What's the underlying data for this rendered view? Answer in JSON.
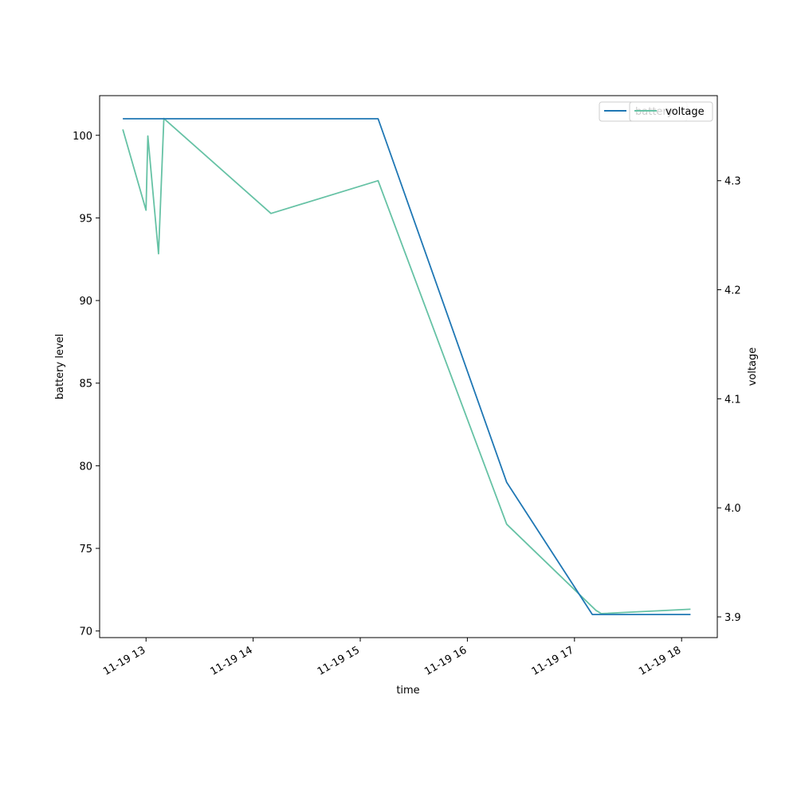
{
  "chart_data": {
    "type": "line",
    "xlabel": "time",
    "ylabel_left": "battery level",
    "ylabel_right": "voltage",
    "x_ticks": [
      "11-19 13",
      "11-19 14",
      "11-19 15",
      "11-19 16",
      "11-19 17",
      "11-19 18"
    ],
    "xlim": [
      "2023-11-19 12:34",
      "2023-11-19 18:20"
    ],
    "ylim_left": [
      69.6,
      102.4
    ],
    "ylim_right": [
      3.881,
      4.378
    ],
    "y_ticks_left": [
      70,
      75,
      80,
      85,
      90,
      95,
      100
    ],
    "y_ticks_right": [
      3.9,
      4.0,
      4.1,
      4.2,
      4.3
    ],
    "grid": false,
    "series": [
      {
        "name": "battery",
        "axis": "left",
        "color": "#1f77b4",
        "points": [
          {
            "x": "2023-11-19 12:47",
            "y": 101
          },
          {
            "x": "2023-11-19 15:10",
            "y": 101
          },
          {
            "x": "2023-11-19 16:22",
            "y": 79
          },
          {
            "x": "2023-11-19 17:10",
            "y": 71
          },
          {
            "x": "2023-11-19 18:05",
            "y": 71
          }
        ]
      },
      {
        "name": "voltage",
        "axis": "right",
        "color": "#66c2a5",
        "points": [
          {
            "x": "2023-11-19 12:47",
            "y": 4.347
          },
          {
            "x": "2023-11-19 13:00",
            "y": 4.273
          },
          {
            "x": "2023-11-19 13:01",
            "y": 4.341
          },
          {
            "x": "2023-11-19 13:07",
            "y": 4.233
          },
          {
            "x": "2023-11-19 13:10",
            "y": 4.357
          },
          {
            "x": "2023-11-19 14:10",
            "y": 4.27
          },
          {
            "x": "2023-11-19 15:10",
            "y": 4.3
          },
          {
            "x": "2023-11-19 16:22",
            "y": 3.985
          },
          {
            "x": "2023-11-19 17:12",
            "y": 3.906
          },
          {
            "x": "2023-11-19 17:15",
            "y": 3.903
          },
          {
            "x": "2023-11-19 18:05",
            "y": 3.907
          }
        ]
      }
    ],
    "legends": [
      {
        "position": "top-right",
        "entries": [
          "battery"
        ]
      },
      {
        "position": "top-right",
        "entries": [
          "voltage"
        ]
      }
    ]
  }
}
